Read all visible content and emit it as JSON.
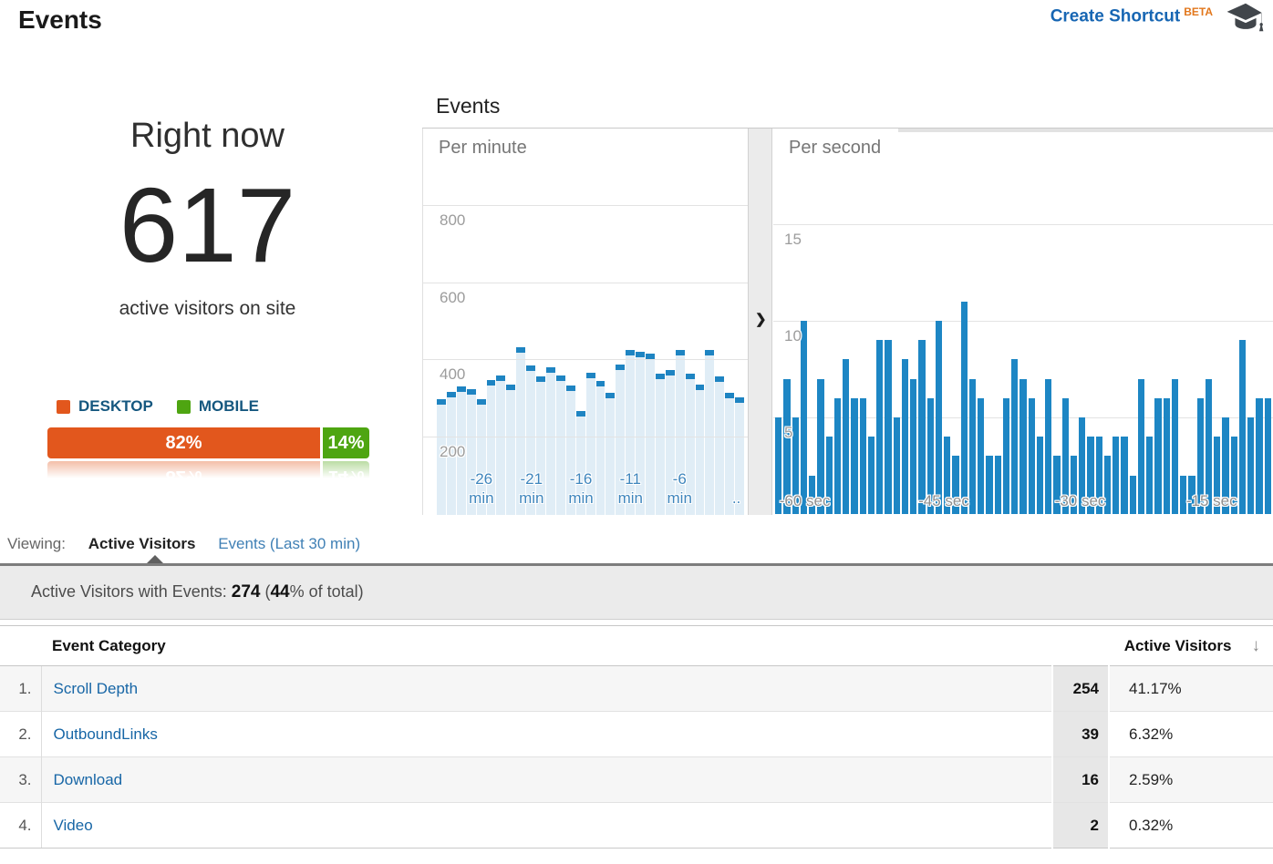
{
  "page_title": "Events",
  "header": {
    "create_shortcut_label": "Create Shortcut",
    "beta_label": "BETA"
  },
  "right_now": {
    "label": "Right now",
    "count": "617",
    "subtitle": "active visitors on site",
    "devices": [
      {
        "label": "DESKTOP",
        "pct": 82,
        "pct_label": "82%",
        "color": "#e2571d"
      },
      {
        "label": "MOBILE",
        "pct": 14,
        "pct_label": "14%",
        "color": "#4ea511"
      }
    ]
  },
  "chart_section_title": "Events",
  "chart_data": [
    {
      "type": "bar",
      "title": "Per minute",
      "style": "cap-and-area",
      "values": [
        300,
        318,
        332,
        326,
        300,
        348,
        362,
        338,
        435,
        386,
        358,
        382,
        362,
        334,
        270,
        368,
        346,
        316,
        390,
        426,
        422,
        418,
        366,
        376,
        426,
        366,
        338,
        428,
        358,
        315,
        305
      ],
      "ylim": [
        0,
        1000
      ],
      "y_ticks": [
        200,
        400,
        600,
        800
      ],
      "x_ticks": [
        {
          "label": "-26 min",
          "pos": 14.5
        },
        {
          "label": "-21 min",
          "pos": 30.8
        },
        {
          "label": "-16 min",
          "pos": 46.9
        },
        {
          "label": "-11 min",
          "pos": 63.0
        },
        {
          "label": "-6 min",
          "pos": 79.0
        },
        {
          "label": "..",
          "pos": 97.5
        }
      ],
      "bar_color": "#1e84c2",
      "area_color": "#e0edf6",
      "grid": true
    },
    {
      "type": "bar",
      "title": "Per second",
      "style": "solid",
      "values": [
        5,
        7,
        5,
        10,
        2,
        7,
        4,
        6,
        8,
        6,
        6,
        4,
        9,
        9,
        5,
        8,
        7,
        9,
        6,
        10,
        4,
        3,
        11,
        7,
        6,
        3,
        3,
        6,
        8,
        7,
        6,
        4,
        7,
        3,
        6,
        3,
        5,
        4,
        4,
        3,
        4,
        4,
        2,
        7,
        4,
        6,
        6,
        7,
        2,
        2,
        6,
        7,
        4,
        5,
        4,
        9,
        5,
        6,
        6
      ],
      "ylim": [
        0,
        20
      ],
      "y_ticks": [
        5,
        10,
        15
      ],
      "x_ticks": [
        {
          "label": "-60 sec",
          "pos": 6.0
        },
        {
          "label": "-45 sec",
          "pos": 34.0
        },
        {
          "label": "-30 sec",
          "pos": 61.5
        },
        {
          "label": "-15 sec",
          "pos": 88.0
        }
      ],
      "bar_color": "#1d86c4",
      "grid": true
    }
  ],
  "viewing": {
    "label": "Viewing:",
    "tabs": [
      {
        "label": "Active Visitors",
        "active": true
      },
      {
        "label": "Events (Last 30 min)",
        "active": false
      }
    ]
  },
  "summary": {
    "prefix": "Active Visitors with Events: ",
    "count": "274",
    "mid": " (",
    "pct": "44",
    "suffix": "% of total)"
  },
  "table": {
    "category_header": "Event Category",
    "visitors_header": "Active Visitors",
    "rows": [
      {
        "rank": "1.",
        "category": "Scroll Depth",
        "visitors": "254",
        "percent": "41.17%"
      },
      {
        "rank": "2.",
        "category": "OutboundLinks",
        "visitors": "39",
        "percent": "6.32%"
      },
      {
        "rank": "3.",
        "category": "Download",
        "visitors": "16",
        "percent": "2.59%"
      },
      {
        "rank": "4.",
        "category": "Video",
        "visitors": "2",
        "percent": "0.32%"
      }
    ]
  },
  "icons": {
    "sort_desc": "↓",
    "chevron": "❯"
  }
}
